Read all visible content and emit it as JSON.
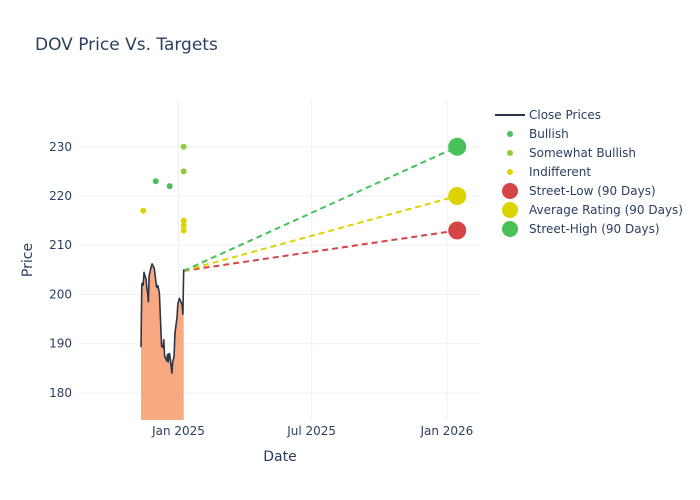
{
  "chart_data": {
    "type": "line",
    "title": "DOV Price Vs. Targets",
    "xlabel": "Date",
    "ylabel": "Price",
    "x_axis": {
      "type": "date",
      "range": [
        "2024-08-20",
        "2026-02-15"
      ],
      "ticks": [
        {
          "date": "2025-01-01",
          "label": "Jan 2025"
        },
        {
          "date": "2025-07-01",
          "label": "Jul 2025"
        },
        {
          "date": "2026-01-01",
          "label": "Jan 2026"
        }
      ]
    },
    "y_axis": {
      "range": [
        174.5,
        239.5
      ],
      "ticks": [
        180,
        190,
        200,
        210,
        220,
        230
      ]
    },
    "grid": true,
    "legend_position": "top-right",
    "close_prices": {
      "name": "Close Prices",
      "color": "#2a3546",
      "fill_color": "#f9a982",
      "points": [
        [
          "2024-11-11",
          189.3
        ],
        [
          "2024-11-12",
          202.0
        ],
        [
          "2024-11-13",
          202.3
        ],
        [
          "2024-11-14",
          201.9
        ],
        [
          "2024-11-15",
          204.5
        ],
        [
          "2024-11-18",
          203.0
        ],
        [
          "2024-11-19",
          201.0
        ],
        [
          "2024-11-20",
          200.5
        ],
        [
          "2024-11-21",
          198.5
        ],
        [
          "2024-11-22",
          203.8
        ],
        [
          "2024-11-25",
          205.7
        ],
        [
          "2024-11-26",
          206.2
        ],
        [
          "2024-11-27",
          205.9
        ],
        [
          "2024-11-29",
          205.3
        ],
        [
          "2024-12-02",
          201.6
        ],
        [
          "2024-12-03",
          201.4
        ],
        [
          "2024-12-04",
          201.8
        ],
        [
          "2024-12-05",
          201.0
        ],
        [
          "2024-12-06",
          200.2
        ],
        [
          "2024-12-09",
          189.4
        ],
        [
          "2024-12-10",
          189.5
        ],
        [
          "2024-12-11",
          189.2
        ],
        [
          "2024-12-12",
          190.8
        ],
        [
          "2024-12-13",
          187.5
        ],
        [
          "2024-12-16",
          186.5
        ],
        [
          "2024-12-17",
          187.8
        ],
        [
          "2024-12-18",
          186.3
        ],
        [
          "2024-12-19",
          188.0
        ],
        [
          "2024-12-20",
          187.9
        ],
        [
          "2024-12-23",
          184.0
        ],
        [
          "2024-12-24",
          186.2
        ],
        [
          "2024-12-26",
          187.5
        ],
        [
          "2024-12-27",
          192.0
        ],
        [
          "2024-12-30",
          195.5
        ],
        [
          "2024-12-31",
          198.0
        ],
        [
          "2025-01-02",
          199.2
        ],
        [
          "2025-01-03",
          199.0
        ],
        [
          "2025-01-06",
          197.8
        ],
        [
          "2025-01-07",
          196.0
        ],
        [
          "2025-01-08",
          205.1
        ]
      ]
    },
    "analyst_ratings": [
      {
        "name": "Bullish",
        "color": "#48c159",
        "points": [
          [
            "2024-12-01",
            223.0
          ],
          [
            "2024-12-20",
            222.0
          ]
        ]
      },
      {
        "name": "Somewhat Bullish",
        "color": "#8fcb3a",
        "points": [
          [
            "2025-01-08",
            230.0
          ],
          [
            "2025-01-08",
            225.0
          ]
        ]
      },
      {
        "name": "Indifferent",
        "color": "#dcd300",
        "points": [
          [
            "2024-11-14",
            217.0
          ],
          [
            "2025-01-08",
            215.0
          ],
          [
            "2025-01-08",
            214.0
          ],
          [
            "2025-01-08",
            213.0
          ]
        ]
      }
    ],
    "targets": {
      "start": [
        "2025-01-08",
        204.8
      ],
      "end_date": "2026-01-15",
      "series": [
        {
          "name": "Street-Low (90 Days)",
          "value": 213.0,
          "color": "#d64545"
        },
        {
          "name": "Average Rating (90 Days)",
          "value": 220.0,
          "color": "#dcd300"
        },
        {
          "name": "Street-High (90 Days)",
          "value": 230.0,
          "color": "#48c159"
        }
      ]
    },
    "legend": [
      {
        "label": "Close Prices",
        "symbol": "line",
        "color": "#2a3546"
      },
      {
        "label": "Bullish",
        "symbol": "small-dot",
        "color": "#48c159"
      },
      {
        "label": "Somewhat Bullish",
        "symbol": "small-dot",
        "color": "#8fcb3a"
      },
      {
        "label": "Indifferent",
        "symbol": "small-dot",
        "color": "#dcd300"
      },
      {
        "label": "Street-Low (90 Days)",
        "symbol": "big-dot",
        "color": "#d64545"
      },
      {
        "label": "Average Rating (90 Days)",
        "symbol": "big-dot",
        "color": "#dcd300"
      },
      {
        "label": "Street-High (90 Days)",
        "symbol": "big-dot",
        "color": "#48c159"
      }
    ]
  }
}
